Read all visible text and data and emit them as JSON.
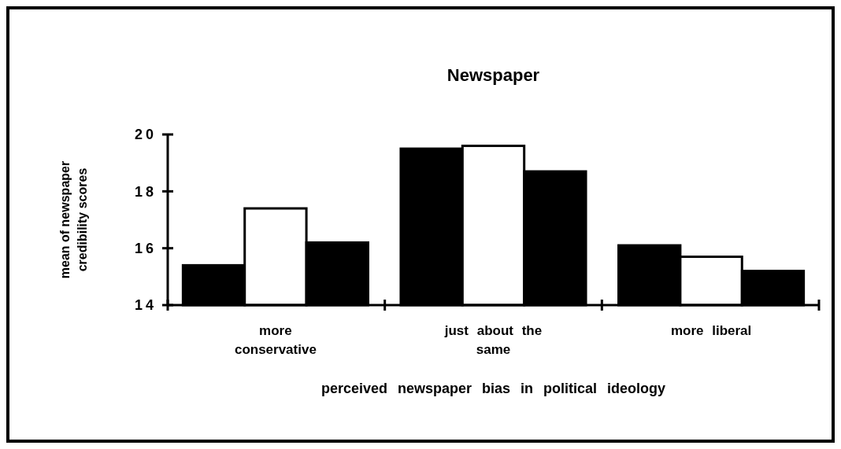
{
  "chart_data": {
    "type": "bar",
    "title": "Newspaper",
    "xlabel": "perceived newspaper bias in political ideology",
    "ylabel": "mean of newspaper credibility scores",
    "categories": [
      "more conservative",
      "just about the same",
      "more liberal"
    ],
    "series": [
      {
        "color": "#000000",
        "values": [
          15.4,
          19.5,
          16.1
        ]
      },
      {
        "color": "#ffffff",
        "values": [
          17.4,
          19.6,
          15.7
        ]
      },
      {
        "color": "#000000",
        "values": [
          16.2,
          18.7,
          15.2
        ]
      }
    ],
    "ylim": [
      14,
      20
    ],
    "yticks": [
      14,
      16,
      18,
      20
    ],
    "grid": false
  }
}
